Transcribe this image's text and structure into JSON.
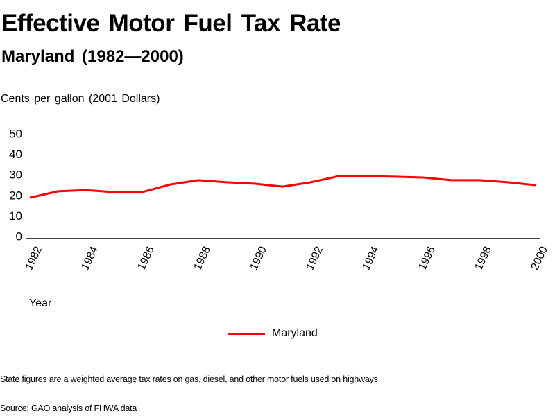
{
  "title": "Effective Motor Fuel Tax Rate",
  "subtitle": "Maryland (1982—2000)",
  "note": "State figures are a weighted average tax rates on gas, diesel, and other motor fuels used on highways.",
  "source": "Source: GAO analysis of FHWA data",
  "chart_data": {
    "type": "line",
    "title": "Effective Motor Fuel Tax Rate",
    "subtitle": "Maryland (1982—2000)",
    "ylabel": "Cents per gallon (2001 Dollars)",
    "xlabel": "Year",
    "ylim": [
      0,
      50
    ],
    "yticks": [
      0,
      10,
      20,
      30,
      40,
      50
    ],
    "xlim": [
      1982,
      2000
    ],
    "xticks": [
      "1982",
      "1984",
      "1986",
      "1988",
      "1990",
      "1992",
      "1994",
      "1996",
      "1998",
      "2000"
    ],
    "grid": false,
    "legend_position": "bottom-center",
    "x": [
      1982,
      1983,
      1984,
      1985,
      1986,
      1987,
      1988,
      1989,
      1990,
      1991,
      1992,
      1993,
      1994,
      1995,
      1996,
      1997,
      1998,
      1999,
      2000
    ],
    "series": [
      {
        "name": "Maryland",
        "color": "#ff0000",
        "values": [
          18.9,
          22.0,
          22.6,
          21.6,
          21.6,
          25.3,
          27.4,
          26.4,
          25.7,
          24.3,
          26.4,
          29.4,
          29.4,
          29.1,
          28.7,
          27.4,
          27.4,
          26.4,
          25.0
        ]
      }
    ]
  }
}
